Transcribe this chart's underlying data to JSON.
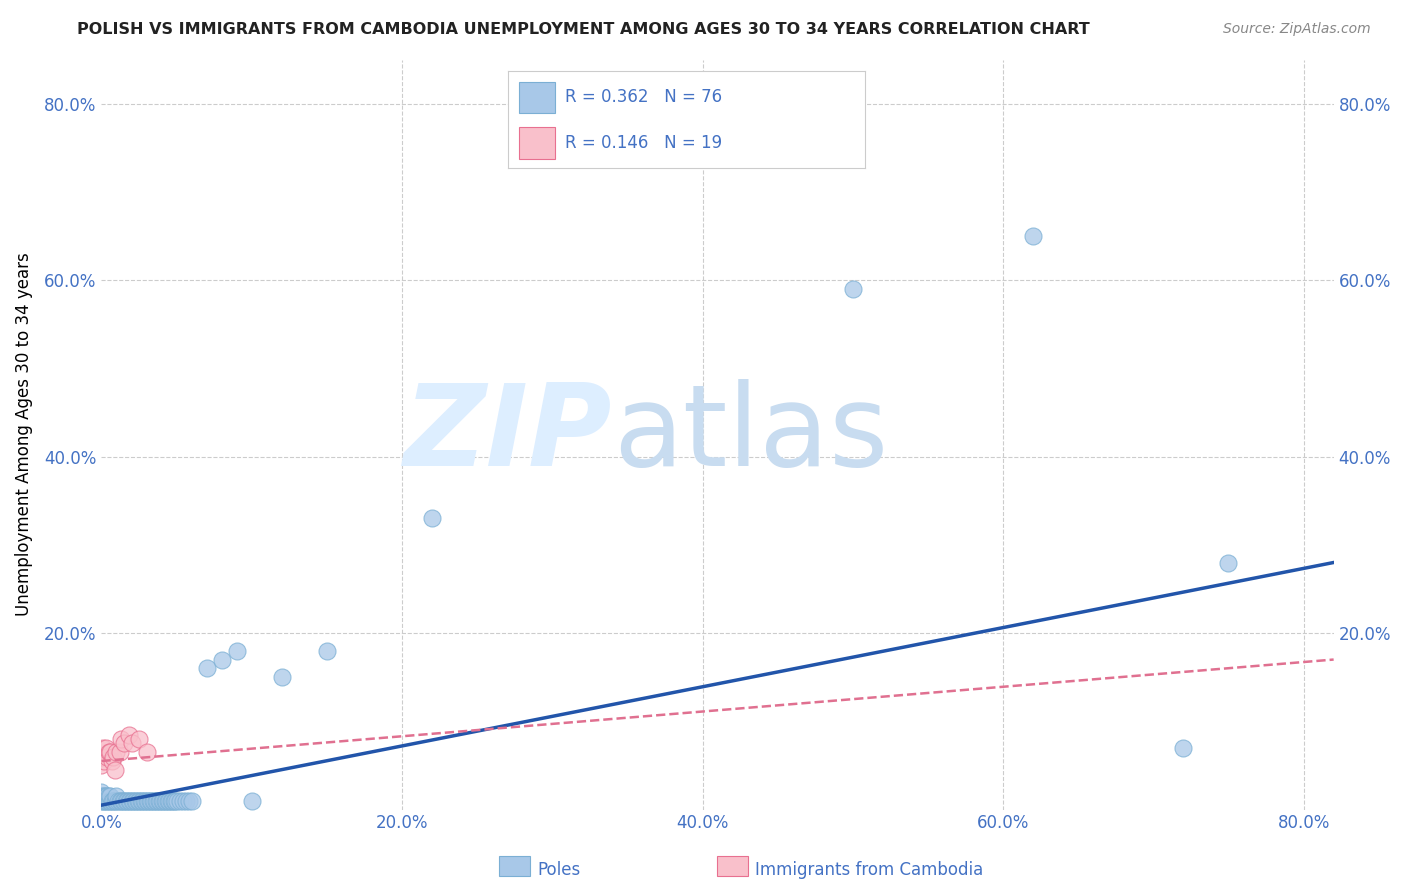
{
  "title": "POLISH VS IMMIGRANTS FROM CAMBODIA UNEMPLOYMENT AMONG AGES 30 TO 34 YEARS CORRELATION CHART",
  "source": "Source: ZipAtlas.com",
  "ylabel": "Unemployment Among Ages 30 to 34 years",
  "axis_label_color": "#4472c4",
  "background_color": "#ffffff",
  "plot_bg_color": "#ffffff",
  "grid_color": "#cccccc",
  "poles_color": "#a8c8e8",
  "poles_edge_color": "#7bafd4",
  "cambodia_color": "#f9c0cb",
  "cambodia_edge_color": "#e87090",
  "trendline_poles_color": "#2255aa",
  "trendline_cambodia_color": "#e07090",
  "legend_R_N_color": "#4472c4",
  "poles_R": 0.362,
  "poles_N": 76,
  "cambodia_R": 0.146,
  "cambodia_N": 19,
  "xlim": [
    0.0,
    0.82
  ],
  "ylim": [
    0.0,
    0.85
  ],
  "x_ticks": [
    0.0,
    0.2,
    0.4,
    0.6,
    0.8
  ],
  "x_tick_labels": [
    "0.0%",
    "20.0%",
    "40.0%",
    "60.0%",
    "80.0%"
  ],
  "y_ticks": [
    0.0,
    0.2,
    0.4,
    0.6,
    0.8
  ],
  "y_tick_labels": [
    "",
    "20.0%",
    "40.0%",
    "60.0%",
    "80.0%"
  ],
  "poles_x": [
    0.0,
    0.0,
    0.0,
    0.001,
    0.001,
    0.002,
    0.002,
    0.003,
    0.003,
    0.004,
    0.004,
    0.005,
    0.005,
    0.006,
    0.006,
    0.007,
    0.008,
    0.009,
    0.01,
    0.01,
    0.011,
    0.012,
    0.013,
    0.014,
    0.015,
    0.016,
    0.017,
    0.018,
    0.019,
    0.02,
    0.021,
    0.022,
    0.023,
    0.024,
    0.025,
    0.026,
    0.027,
    0.028,
    0.029,
    0.03,
    0.031,
    0.032,
    0.033,
    0.034,
    0.035,
    0.036,
    0.037,
    0.038,
    0.039,
    0.04,
    0.041,
    0.042,
    0.043,
    0.044,
    0.045,
    0.046,
    0.047,
    0.048,
    0.049,
    0.05,
    0.052,
    0.054,
    0.056,
    0.058,
    0.06,
    0.07,
    0.08,
    0.09,
    0.1,
    0.12,
    0.15,
    0.22,
    0.5,
    0.62,
    0.72,
    0.75
  ],
  "poles_y": [
    0.01,
    0.015,
    0.02,
    0.01,
    0.015,
    0.01,
    0.015,
    0.01,
    0.015,
    0.01,
    0.015,
    0.01,
    0.015,
    0.01,
    0.015,
    0.01,
    0.01,
    0.01,
    0.01,
    0.015,
    0.01,
    0.01,
    0.01,
    0.01,
    0.01,
    0.01,
    0.01,
    0.01,
    0.01,
    0.01,
    0.01,
    0.01,
    0.01,
    0.01,
    0.01,
    0.01,
    0.01,
    0.01,
    0.01,
    0.01,
    0.01,
    0.01,
    0.01,
    0.01,
    0.01,
    0.01,
    0.01,
    0.01,
    0.01,
    0.01,
    0.01,
    0.01,
    0.01,
    0.01,
    0.01,
    0.01,
    0.01,
    0.01,
    0.01,
    0.01,
    0.01,
    0.01,
    0.01,
    0.01,
    0.01,
    0.16,
    0.17,
    0.18,
    0.01,
    0.15,
    0.18,
    0.33,
    0.59,
    0.65,
    0.07,
    0.28
  ],
  "cambodia_x": [
    0.0,
    0.0,
    0.001,
    0.002,
    0.003,
    0.004,
    0.005,
    0.006,
    0.007,
    0.008,
    0.009,
    0.01,
    0.012,
    0.013,
    0.015,
    0.018,
    0.02,
    0.025,
    0.03
  ],
  "cambodia_y": [
    0.05,
    0.06,
    0.07,
    0.055,
    0.07,
    0.06,
    0.065,
    0.065,
    0.055,
    0.06,
    0.045,
    0.065,
    0.065,
    0.08,
    0.075,
    0.085,
    0.075,
    0.08,
    0.065
  ],
  "trendline_poles_start_y": 0.005,
  "trendline_poles_end_y": 0.28,
  "trendline_cambodia_start_y": 0.055,
  "trendline_cambodia_end_y": 0.17
}
